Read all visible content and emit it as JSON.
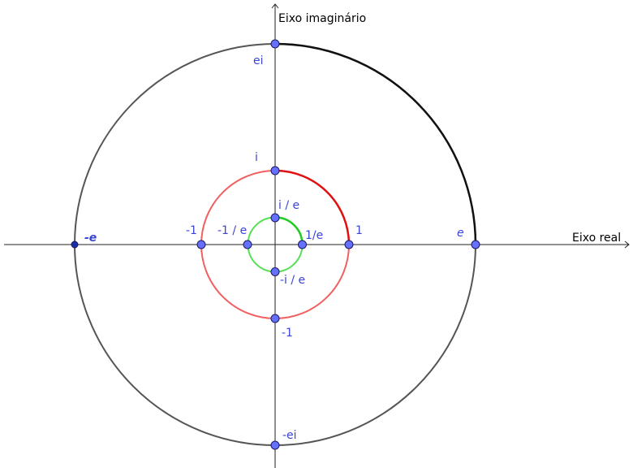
{
  "axes": {
    "x_label": "Eixo real",
    "y_label": "Eixo imaginário"
  },
  "points": [
    {
      "label": "ei"
    },
    {
      "label": "i"
    },
    {
      "label": "i / e"
    },
    {
      "label": "-1 / e"
    },
    {
      "label": "1/e"
    },
    {
      "label": "-1"
    },
    {
      "label": "1"
    },
    {
      "label": "e"
    },
    {
      "label": "-e"
    },
    {
      "label": "-i / e"
    },
    {
      "label": "-1"
    },
    {
      "label": "-ei"
    }
  ]
}
